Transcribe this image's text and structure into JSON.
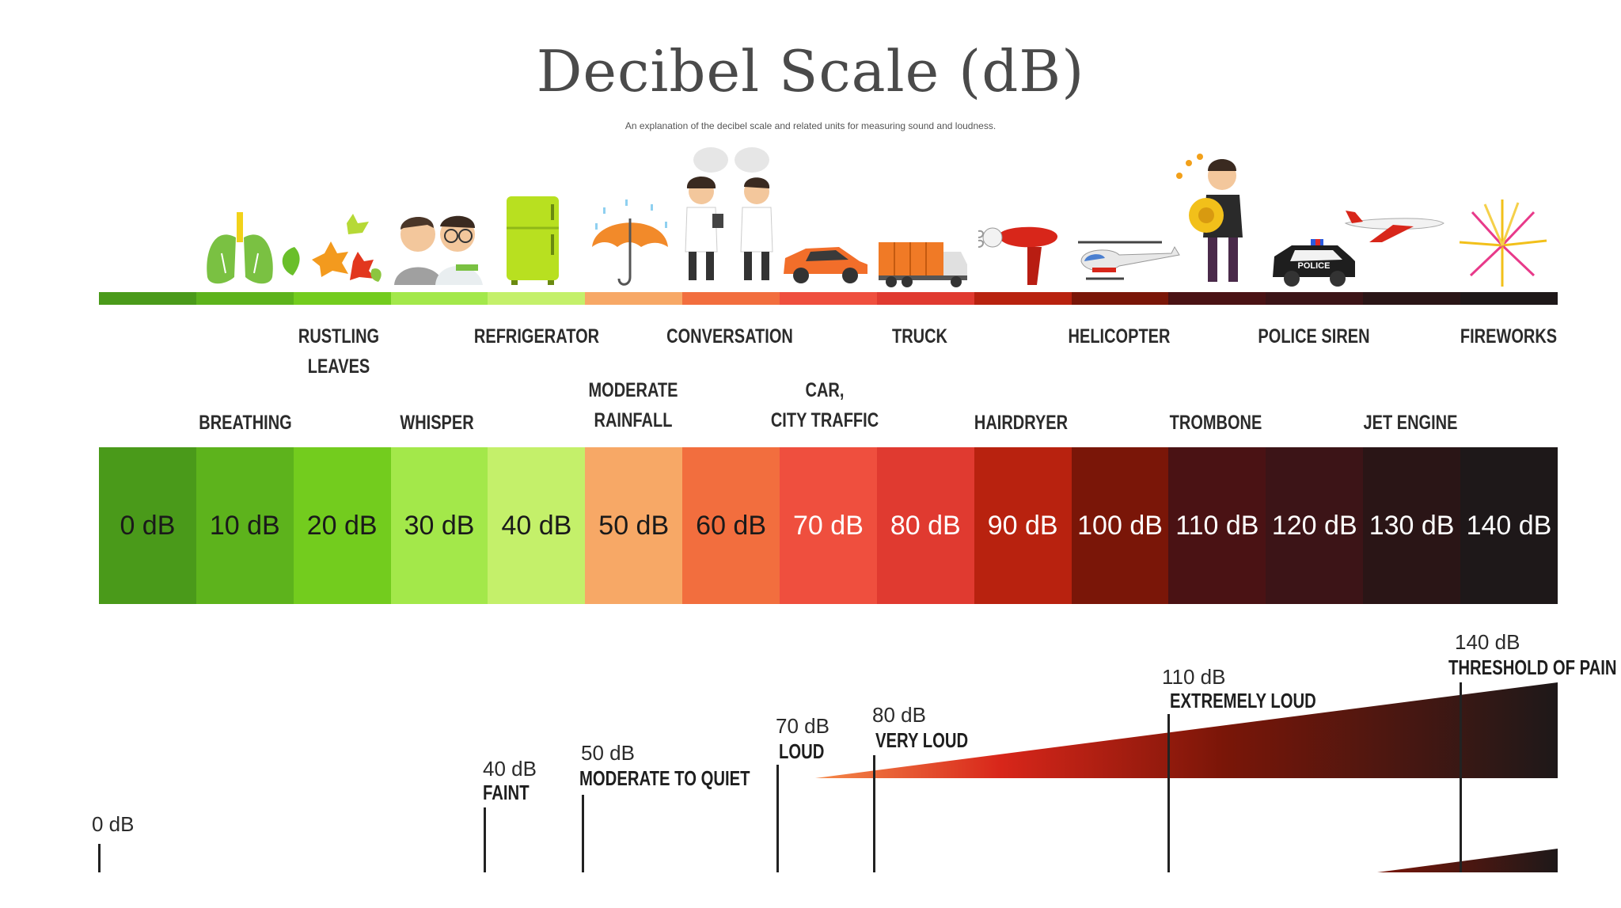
{
  "title": "Decibel Scale (dB)",
  "subtitle": "An explanation of the decibel scale and related units for measuring sound and loudness.",
  "colors": [
    "#4a9a1a",
    "#5db31c",
    "#73cc1e",
    "#a3e84a",
    "#c4f06a",
    "#f7a866",
    "#f26e3e",
    "#ef4f3e",
    "#e03a30",
    "#b8220f",
    "#7a1608",
    "#4a1214",
    "#3c1417",
    "#2a1516",
    "#1e1819"
  ],
  "scale": [
    {
      "label": "0 dB",
      "text_color": "#1a1a1a"
    },
    {
      "label": "10 dB",
      "text_color": "#1a1a1a"
    },
    {
      "label": "20 dB",
      "text_color": "#1a1a1a"
    },
    {
      "label": "30 dB",
      "text_color": "#1a1a1a"
    },
    {
      "label": "40 dB",
      "text_color": "#1a1a1a"
    },
    {
      "label": "50 dB",
      "text_color": "#1a1a1a"
    },
    {
      "label": "60 dB",
      "text_color": "#1a1a1a"
    },
    {
      "label": "70 dB",
      "text_color": "#ffffff"
    },
    {
      "label": "80 dB",
      "text_color": "#ffffff"
    },
    {
      "label": "90 dB",
      "text_color": "#ffffff"
    },
    {
      "label": "100 dB",
      "text_color": "#ffffff"
    },
    {
      "label": "110 dB",
      "text_color": "#ffffff"
    },
    {
      "label": "120 dB",
      "text_color": "#ffffff"
    },
    {
      "label": "130 dB",
      "text_color": "#ffffff"
    },
    {
      "label": "140 dB",
      "text_color": "#ffffff"
    }
  ],
  "sources": {
    "breathing": "BREATHING",
    "rustling_leaves": "RUSTLING\nLEAVES",
    "whisper": "WHISPER",
    "refrigerator": "REFRIGERATOR",
    "moderate_rainfall": "MODERATE\nRAINFALL",
    "conversation": "CONVERSATION",
    "car_city_traffic": "CAR,\nCITY TRAFFIC",
    "truck": "TRUCK",
    "hairdryer": "HAIRDRYER",
    "helicopter": "HELICOPTER",
    "trombone": "TROMBONE",
    "police_siren": "POLICE SIREN",
    "jet_engine": "JET ENGINE",
    "fireworks": "FIREWORKS"
  },
  "levels": {
    "l0": {
      "db": "0 dB"
    },
    "l40": {
      "db": "40 dB",
      "name": "FAINT"
    },
    "l50": {
      "db": "50 dB",
      "name": "MODERATE TO QUIET"
    },
    "l70": {
      "db": "70 dB",
      "name": "LOUD"
    },
    "l80": {
      "db": "80 dB",
      "name": "VERY LOUD"
    },
    "l110": {
      "db": "110 dB",
      "name": "EXTREMELY LOUD"
    },
    "l140": {
      "db": "140 dB",
      "name": "THRESHOLD OF PAIN"
    }
  },
  "police_text": "POLICE"
}
